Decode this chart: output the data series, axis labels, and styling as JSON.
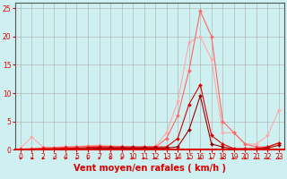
{
  "x": [
    0,
    1,
    2,
    3,
    4,
    5,
    6,
    7,
    8,
    9,
    10,
    11,
    12,
    13,
    14,
    15,
    16,
    17,
    18,
    19,
    20,
    21,
    22,
    23
  ],
  "line1": [
    0.3,
    2.2,
    0.5,
    0.4,
    0.5,
    0.6,
    0.7,
    0.8,
    0.7,
    0.6,
    0.5,
    0.5,
    0.6,
    3.0,
    8.5,
    19.0,
    20.0,
    16.0,
    3.0,
    3.0,
    1.0,
    1.0,
    2.5,
    7.0
  ],
  "line2": [
    0.1,
    0.2,
    0.3,
    0.4,
    0.5,
    0.5,
    0.6,
    0.6,
    0.5,
    0.4,
    0.3,
    0.3,
    0.4,
    2.0,
    6.0,
    14.0,
    24.5,
    20.0,
    5.0,
    3.0,
    1.0,
    0.5,
    0.5,
    1.2
  ],
  "line3": [
    0.1,
    0.1,
    0.2,
    0.2,
    0.3,
    0.3,
    0.4,
    0.5,
    0.5,
    0.5,
    0.5,
    0.5,
    0.5,
    0.5,
    2.0,
    8.0,
    11.5,
    2.5,
    1.0,
    0.2,
    0.2,
    0.2,
    0.5,
    1.2
  ],
  "line4": [
    0.0,
    0.1,
    0.1,
    0.1,
    0.1,
    0.2,
    0.2,
    0.3,
    0.3,
    0.3,
    0.3,
    0.3,
    0.3,
    0.3,
    0.5,
    3.5,
    9.5,
    1.0,
    0.5,
    0.1,
    0.1,
    0.1,
    0.3,
    0.8
  ],
  "bg_color": "#cff0f0",
  "grid_color": "#aaaaaa",
  "line1_color": "#ffaaaa",
  "line2_color": "#ff6666",
  "line3_color": "#dd0000",
  "line4_color": "#990000",
  "xlabel": "Vent moyen/en rafales ( km/h )",
  "ylabel_ticks": [
    0,
    5,
    10,
    15,
    20,
    25
  ],
  "ylim": [
    0,
    26
  ],
  "xlim": [
    -0.5,
    23.5
  ],
  "tick_fontsize": 5.5,
  "xlabel_fontsize": 7,
  "label_color": "#dd0000"
}
